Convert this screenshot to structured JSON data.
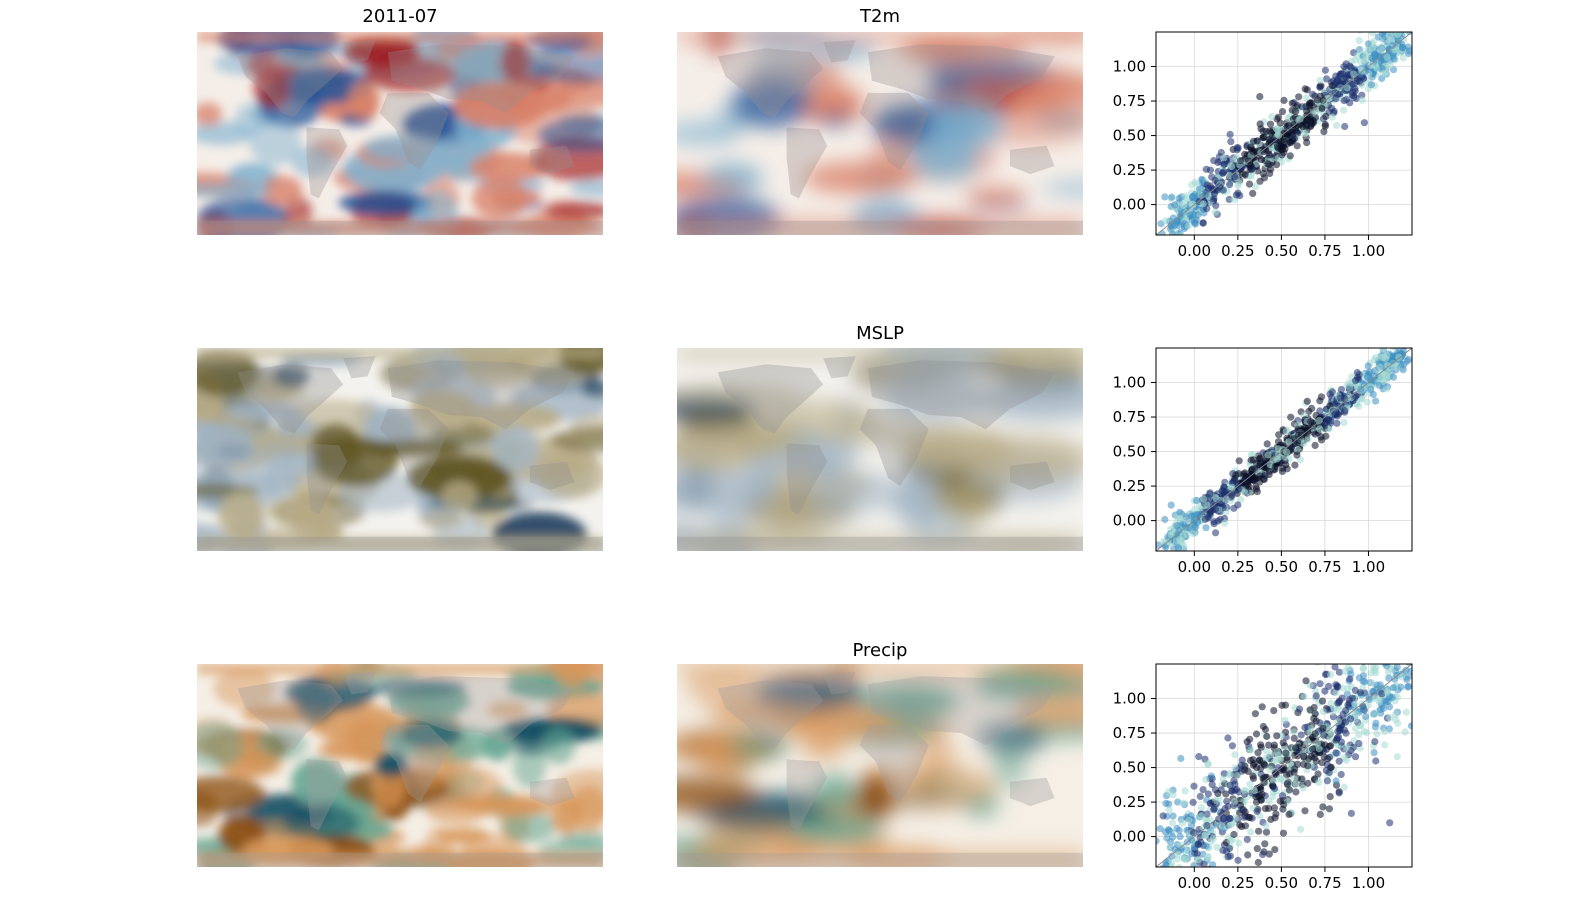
{
  "chart_data": {
    "type": "heatmap",
    "rows": [
      {
        "variable": "T2m",
        "palette": "red-blue diverging",
        "colors": {
          "hot": "#a01a1f",
          "warm": "#d9826a",
          "mid": "#f5eee8",
          "cool": "#7fb1cf",
          "cold": "#1d4f95",
          "land": "#9a8f8e"
        },
        "scatter": {
          "type": "scatter",
          "subtype": "hexbin density",
          "xlim": [
            -0.22,
            1.25
          ],
          "ylim": [
            -0.22,
            1.25
          ],
          "spread": 0.06,
          "identity_line": true
        }
      },
      {
        "variable": "MSLP",
        "palette": "brown-blue diverging",
        "colors": {
          "hot": "#5e5420",
          "warm": "#b7ab86",
          "mid": "#f3f2ee",
          "cool": "#9fb2c2",
          "cold": "#1e3f5c",
          "land": "#8f8f8f"
        },
        "scatter": {
          "type": "scatter",
          "subtype": "hexbin density",
          "xlim": [
            -0.22,
            1.25
          ],
          "ylim": [
            -0.22,
            1.25
          ],
          "spread": 0.045,
          "identity_line": true
        }
      },
      {
        "variable": "Precip",
        "palette": "brown-green diverging",
        "colors": {
          "hot": "#8a4d10",
          "warm": "#d7965a",
          "mid": "#f5efe6",
          "cool": "#66a693",
          "cold": "#0c4a5f",
          "land": "#a09c9a"
        },
        "scatter": {
          "type": "scatter",
          "subtype": "hexbin density",
          "xlim": [
            -0.22,
            1.25
          ],
          "ylim": [
            -0.22,
            1.25
          ],
          "spread": 0.16,
          "identity_line": true
        }
      }
    ],
    "left_column_title": "2011-07",
    "tick_labels": [
      "0.00",
      "0.25",
      "0.50",
      "0.75",
      "1.00"
    ],
    "tick_values": [
      0,
      0.25,
      0.5,
      0.75,
      1.0
    ],
    "grid": true,
    "density_colors": [
      "#a6dbd3",
      "#3f8fc3",
      "#1b2f6e",
      "#0a0f26"
    ]
  },
  "titles": {
    "left": "2011-07",
    "mid0": "T2m",
    "mid1": "MSLP",
    "mid2": "Precip"
  }
}
